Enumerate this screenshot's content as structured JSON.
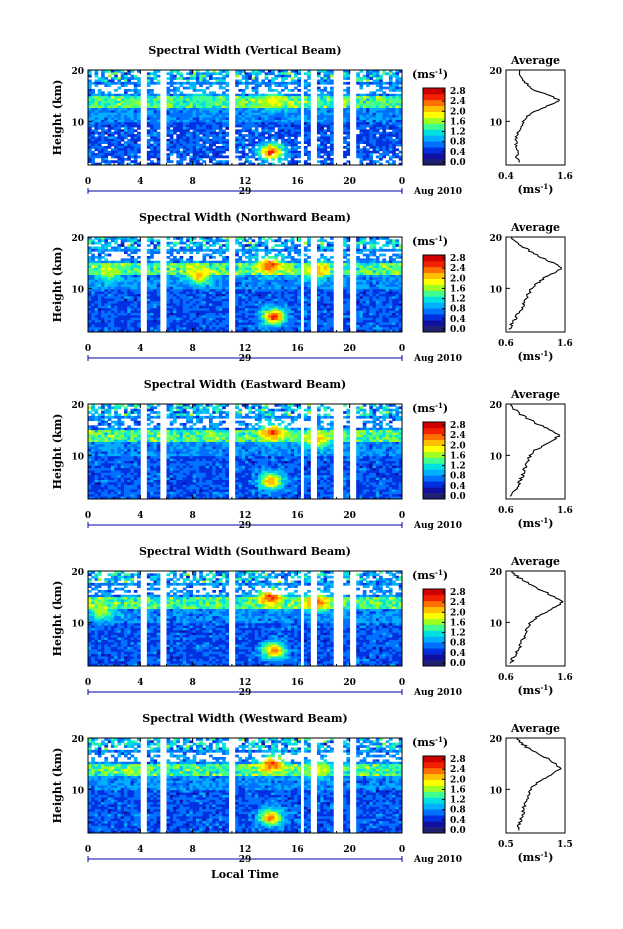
{
  "figure": {
    "bottom_label": "Local Time",
    "day_label": "29",
    "date_label": "Aug 2010"
  },
  "colorbar": {
    "unit": "(ms",
    "unit_sup": "-1",
    "unit_close": ")",
    "ticks": [
      "2.8",
      "2.4",
      "2.0",
      "1.6",
      "1.2",
      "0.8",
      "0.4",
      "0.0"
    ],
    "colors": [
      "#202070",
      "#1010a0",
      "#0030e0",
      "#0070ff",
      "#00b0ff",
      "#00e0e0",
      "#40ff90",
      "#a0ff20",
      "#ffff00",
      "#ffc000",
      "#ff7000",
      "#f02000",
      "#d00000"
    ]
  },
  "chart_data": [
    {
      "type": "heatmap",
      "title": "Spectral Width (Vertical Beam)",
      "ylabel": "Height (km)",
      "xlabel": "Local Time",
      "x_ticks": [
        "0",
        "4",
        "8",
        "12",
        "16",
        "20",
        "0"
      ],
      "y_ticks": [
        "20",
        "10"
      ],
      "xlim": [
        0,
        24
      ],
      "ylim": [
        1.5,
        20
      ],
      "clim": [
        0.0,
        3.0
      ],
      "gaps_hours": [
        [
          4.0,
          4.4
        ],
        [
          4.9,
          5.1
        ],
        [
          5.6,
          6.0
        ],
        [
          10.8,
          11.2
        ],
        [
          16.2,
          16.5
        ],
        [
          16.9,
          17.4
        ],
        [
          18.8,
          19.5
        ],
        [
          20.0,
          20.4
        ]
      ],
      "hotspots": [
        {
          "x": 14.2,
          "y": 14.0,
          "v": 2.0
        },
        {
          "x": 8.5,
          "y": 14.5,
          "v": 1.4
        },
        {
          "x": 14.0,
          "y": 4.0,
          "v": 2.6
        }
      ],
      "average": {
        "title": "Average",
        "xlabel": "(ms",
        "xlabel_sup": "-1",
        "xlabel_close": ")",
        "x_ticks": [
          "0.4",
          "1.6"
        ],
        "xlim": [
          0.4,
          1.6
        ],
        "y_ticks": [
          "20",
          "10"
        ],
        "profile": [
          [
            2,
            0.65
          ],
          [
            3,
            0.62
          ],
          [
            4,
            0.66
          ],
          [
            5,
            0.62
          ],
          [
            6,
            0.6
          ],
          [
            7,
            0.62
          ],
          [
            8,
            0.66
          ],
          [
            9,
            0.7
          ],
          [
            10,
            0.76
          ],
          [
            11,
            0.82
          ],
          [
            12,
            1.0
          ],
          [
            13,
            1.25
          ],
          [
            14,
            1.5
          ],
          [
            15,
            1.3
          ],
          [
            16,
            1.0
          ],
          [
            17,
            0.85
          ],
          [
            18,
            0.74
          ],
          [
            19,
            0.7
          ],
          [
            20,
            0.68
          ]
        ]
      }
    },
    {
      "type": "heatmap",
      "title": "Spectral Width (Northward Beam)",
      "ylabel": "Height (km)",
      "xlabel": "Local Time",
      "x_ticks": [
        "0",
        "4",
        "8",
        "12",
        "16",
        "20",
        "0"
      ],
      "y_ticks": [
        "20",
        "10"
      ],
      "xlim": [
        0,
        24
      ],
      "ylim": [
        1.5,
        20
      ],
      "clim": [
        0.0,
        3.0
      ],
      "gaps_hours": [
        [
          4.0,
          4.4
        ],
        [
          4.9,
          5.1
        ],
        [
          5.6,
          6.0
        ],
        [
          10.8,
          11.2
        ],
        [
          16.2,
          16.5
        ],
        [
          16.9,
          17.4
        ],
        [
          18.8,
          19.5
        ],
        [
          20.0,
          20.4
        ]
      ],
      "hotspots": [
        {
          "x": 13.9,
          "y": 14.5,
          "v": 2.6
        },
        {
          "x": 14.2,
          "y": 4.5,
          "v": 2.6
        },
        {
          "x": 8.5,
          "y": 12.5,
          "v": 2.2
        },
        {
          "x": 17.5,
          "y": 13.5,
          "v": 2.3
        },
        {
          "x": 1.5,
          "y": 13.0,
          "v": 1.8
        }
      ],
      "average": {
        "title": "Average",
        "xlabel": "(ms",
        "xlabel_sup": "-1",
        "xlabel_close": ")",
        "x_ticks": [
          "0.6",
          "1.6"
        ],
        "xlim": [
          0.6,
          1.6
        ],
        "y_ticks": [
          "20",
          "10"
        ],
        "profile": [
          [
            2,
            0.66
          ],
          [
            3,
            0.7
          ],
          [
            4,
            0.76
          ],
          [
            5,
            0.8
          ],
          [
            6,
            0.86
          ],
          [
            7,
            0.9
          ],
          [
            8,
            0.94
          ],
          [
            9,
            0.98
          ],
          [
            10,
            1.04
          ],
          [
            11,
            1.12
          ],
          [
            12,
            1.25
          ],
          [
            13,
            1.4
          ],
          [
            14,
            1.55
          ],
          [
            15,
            1.38
          ],
          [
            16,
            1.2
          ],
          [
            17,
            1.05
          ],
          [
            18,
            0.9
          ],
          [
            19,
            0.78
          ],
          [
            20,
            0.7
          ]
        ]
      }
    },
    {
      "type": "heatmap",
      "title": "Spectral Width (Eastward Beam)",
      "ylabel": "Height (km)",
      "xlabel": "Local Time",
      "x_ticks": [
        "0",
        "4",
        "8",
        "12",
        "16",
        "20",
        "0"
      ],
      "y_ticks": [
        "20",
        "10"
      ],
      "xlim": [
        0,
        24
      ],
      "ylim": [
        1.5,
        20
      ],
      "clim": [
        0.0,
        3.0
      ],
      "gaps_hours": [
        [
          4.0,
          4.4
        ],
        [
          4.9,
          5.1
        ],
        [
          5.6,
          6.0
        ],
        [
          10.8,
          11.2
        ],
        [
          16.2,
          16.5
        ],
        [
          16.9,
          17.4
        ],
        [
          18.8,
          19.5
        ],
        [
          20.0,
          20.4
        ]
      ],
      "hotspots": [
        {
          "x": 14.1,
          "y": 14.5,
          "v": 2.5
        },
        {
          "x": 14.0,
          "y": 5.0,
          "v": 2.3
        },
        {
          "x": 17.5,
          "y": 13.0,
          "v": 2.2
        }
      ],
      "average": {
        "title": "Average",
        "xlabel": "(ms",
        "xlabel_sup": "-1",
        "xlabel_close": ")",
        "x_ticks": [
          "0.6",
          "1.6"
        ],
        "xlim": [
          0.6,
          1.6
        ],
        "y_ticks": [
          "20",
          "10"
        ],
        "profile": [
          [
            2,
            0.7
          ],
          [
            3,
            0.74
          ],
          [
            4,
            0.8
          ],
          [
            5,
            0.84
          ],
          [
            6,
            0.88
          ],
          [
            7,
            0.9
          ],
          [
            8,
            0.93
          ],
          [
            9,
            0.97
          ],
          [
            10,
            1.02
          ],
          [
            11,
            1.1
          ],
          [
            12,
            1.25
          ],
          [
            13,
            1.42
          ],
          [
            14,
            1.5
          ],
          [
            15,
            1.35
          ],
          [
            16,
            1.15
          ],
          [
            17,
            1.0
          ],
          [
            18,
            0.85
          ],
          [
            19,
            0.74
          ],
          [
            20,
            0.68
          ]
        ]
      }
    },
    {
      "type": "heatmap",
      "title": "Spectral Width (Southward Beam)",
      "ylabel": "Height (km)",
      "xlabel": "Local Time",
      "x_ticks": [
        "0",
        "4",
        "8",
        "12",
        "16",
        "20",
        "0"
      ],
      "y_ticks": [
        "20",
        "10"
      ],
      "xlim": [
        0,
        24
      ],
      "ylim": [
        1.5,
        20
      ],
      "clim": [
        0.0,
        3.0
      ],
      "gaps_hours": [
        [
          4.0,
          4.4
        ],
        [
          4.9,
          5.1
        ],
        [
          5.6,
          6.0
        ],
        [
          10.8,
          11.2
        ],
        [
          16.2,
          16.5
        ],
        [
          16.9,
          17.4
        ],
        [
          18.8,
          19.5
        ],
        [
          20.0,
          20.4
        ]
      ],
      "hotspots": [
        {
          "x": 14.0,
          "y": 15.0,
          "v": 2.6
        },
        {
          "x": 17.5,
          "y": 14.0,
          "v": 2.5
        },
        {
          "x": 14.2,
          "y": 4.5,
          "v": 2.4
        },
        {
          "x": 1.0,
          "y": 12.0,
          "v": 1.8
        }
      ],
      "average": {
        "title": "Average",
        "xlabel": "(ms",
        "xlabel_sup": "-1",
        "xlabel_close": ")",
        "x_ticks": [
          "0.6",
          "1.6"
        ],
        "xlim": [
          0.6,
          1.6
        ],
        "y_ticks": [
          "20",
          "10"
        ],
        "profile": [
          [
            2,
            0.68
          ],
          [
            3,
            0.72
          ],
          [
            4,
            0.78
          ],
          [
            5,
            0.82
          ],
          [
            6,
            0.86
          ],
          [
            7,
            0.9
          ],
          [
            8,
            0.93
          ],
          [
            9,
            0.97
          ],
          [
            10,
            1.02
          ],
          [
            11,
            1.12
          ],
          [
            12,
            1.28
          ],
          [
            13,
            1.45
          ],
          [
            14,
            1.55
          ],
          [
            15,
            1.42
          ],
          [
            16,
            1.25
          ],
          [
            17,
            1.08
          ],
          [
            18,
            0.92
          ],
          [
            19,
            0.78
          ],
          [
            20,
            0.7
          ]
        ]
      }
    },
    {
      "type": "heatmap",
      "title": "Spectral Width (Westward Beam)",
      "ylabel": "Height (km)",
      "xlabel": "Local Time",
      "x_ticks": [
        "0",
        "4",
        "8",
        "12",
        "16",
        "20",
        "0"
      ],
      "y_ticks": [
        "20",
        "10"
      ],
      "xlim": [
        0,
        24
      ],
      "ylim": [
        1.5,
        20
      ],
      "clim": [
        0.0,
        3.0
      ],
      "gaps_hours": [
        [
          4.0,
          4.4
        ],
        [
          4.9,
          5.1
        ],
        [
          5.6,
          6.0
        ],
        [
          10.8,
          11.2
        ],
        [
          16.2,
          16.5
        ],
        [
          16.9,
          17.4
        ],
        [
          18.8,
          19.5
        ],
        [
          20.0,
          20.4
        ]
      ],
      "hotspots": [
        {
          "x": 14.1,
          "y": 15.0,
          "v": 2.6
        },
        {
          "x": 14.0,
          "y": 4.5,
          "v": 2.4
        },
        {
          "x": 17.5,
          "y": 14.0,
          "v": 1.9
        }
      ],
      "average": {
        "title": "Average",
        "xlabel": "(ms",
        "xlabel_sup": "-1",
        "xlabel_close": ")",
        "x_ticks": [
          "0.5",
          "1.5"
        ],
        "xlim": [
          0.5,
          1.5
        ],
        "y_ticks": [
          "20",
          "10"
        ],
        "profile": [
          [
            2,
            0.7
          ],
          [
            3,
            0.72
          ],
          [
            4,
            0.76
          ],
          [
            5,
            0.78
          ],
          [
            6,
            0.8
          ],
          [
            7,
            0.82
          ],
          [
            8,
            0.84
          ],
          [
            9,
            0.88
          ],
          [
            10,
            0.92
          ],
          [
            11,
            1.0
          ],
          [
            12,
            1.15
          ],
          [
            13,
            1.3
          ],
          [
            14,
            1.42
          ],
          [
            15,
            1.35
          ],
          [
            16,
            1.2
          ],
          [
            17,
            1.02
          ],
          [
            18,
            0.88
          ],
          [
            19,
            0.76
          ],
          [
            20,
            0.68
          ]
        ]
      }
    }
  ]
}
